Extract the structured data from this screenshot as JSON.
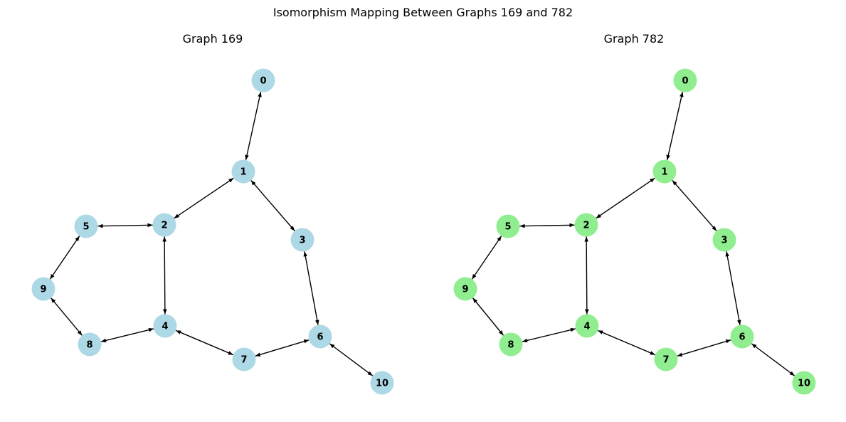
{
  "figure": {
    "title": "Isomorphism Mapping Between Graphs 169 and 782"
  },
  "graphs": [
    {
      "title": "Graph 169",
      "node_color": "#add8e6",
      "nodes": [
        "0",
        "1",
        "2",
        "3",
        "4",
        "5",
        "6",
        "7",
        "8",
        "9",
        "10"
      ],
      "edges": [
        [
          "0",
          "1"
        ],
        [
          "1",
          "2"
        ],
        [
          "1",
          "3"
        ],
        [
          "2",
          "5"
        ],
        [
          "2",
          "4"
        ],
        [
          "5",
          "9"
        ],
        [
          "9",
          "8"
        ],
        [
          "8",
          "4"
        ],
        [
          "4",
          "7"
        ],
        [
          "7",
          "6"
        ],
        [
          "3",
          "6"
        ],
        [
          "6",
          "10"
        ]
      ]
    },
    {
      "title": "Graph 782",
      "node_color": "#90ee90",
      "nodes": [
        "0",
        "1",
        "2",
        "3",
        "4",
        "5",
        "6",
        "7",
        "8",
        "9",
        "10"
      ],
      "edges": [
        [
          "0",
          "1"
        ],
        [
          "1",
          "2"
        ],
        [
          "1",
          "3"
        ],
        [
          "2",
          "5"
        ],
        [
          "2",
          "4"
        ],
        [
          "5",
          "9"
        ],
        [
          "9",
          "8"
        ],
        [
          "8",
          "4"
        ],
        [
          "4",
          "7"
        ],
        [
          "7",
          "6"
        ],
        [
          "3",
          "6"
        ],
        [
          "6",
          "10"
        ]
      ]
    }
  ]
}
